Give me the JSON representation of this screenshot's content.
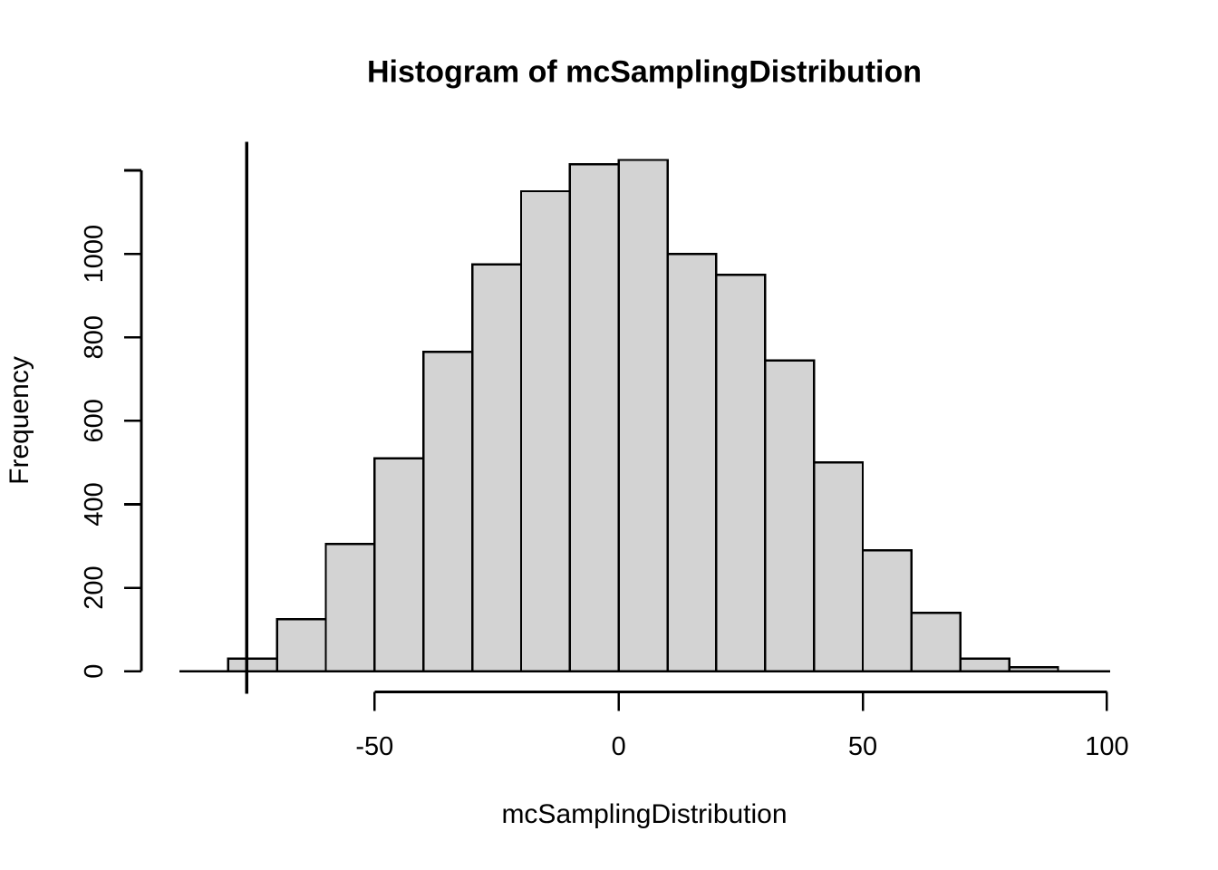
{
  "page": {
    "background": "#ffffff"
  },
  "chart_data": {
    "type": "bar",
    "subtype": "histogram",
    "title": "Histogram of mcSamplingDistribution",
    "xlabel": "mcSamplingDistribution",
    "ylabel": "Frequency",
    "grid": false,
    "legend": false,
    "xlim": [
      -90,
      101
    ],
    "ylim": [
      0,
      1280
    ],
    "x_ticks": [
      {
        "value": -50,
        "label": "-50"
      },
      {
        "value": 0,
        "label": "0"
      },
      {
        "value": 50,
        "label": "50"
      },
      {
        "value": 100,
        "label": "100"
      }
    ],
    "y_ticks": [
      {
        "value": 0,
        "label": "0"
      },
      {
        "value": 200,
        "label": "200"
      },
      {
        "value": 400,
        "label": "400"
      },
      {
        "value": 600,
        "label": "600"
      },
      {
        "value": 800,
        "label": "800"
      },
      {
        "value": 1000,
        "label": "1000"
      },
      {
        "value": 1200,
        "label": ""
      }
    ],
    "bins": [
      {
        "from": -80,
        "to": -70,
        "count": 30
      },
      {
        "from": -70,
        "to": -60,
        "count": 125
      },
      {
        "from": -60,
        "to": -50,
        "count": 305
      },
      {
        "from": -50,
        "to": -40,
        "count": 510
      },
      {
        "from": -40,
        "to": -30,
        "count": 765
      },
      {
        "from": -30,
        "to": -20,
        "count": 975
      },
      {
        "from": -20,
        "to": -10,
        "count": 1150
      },
      {
        "from": -10,
        "to": 0,
        "count": 1215
      },
      {
        "from": 0,
        "to": 10,
        "count": 1225
      },
      {
        "from": 10,
        "to": 20,
        "count": 1000
      },
      {
        "from": 20,
        "to": 30,
        "count": 950
      },
      {
        "from": 30,
        "to": 40,
        "count": 745
      },
      {
        "from": 40,
        "to": 50,
        "count": 500
      },
      {
        "from": 50,
        "to": 60,
        "count": 290
      },
      {
        "from": 60,
        "to": 70,
        "count": 140
      },
      {
        "from": 70,
        "to": 80,
        "count": 30
      },
      {
        "from": 80,
        "to": 90,
        "count": 10
      }
    ],
    "vertical_line_x": -76.2,
    "colors": {
      "bar_fill": "#d3d3d3",
      "bar_border": "#000000",
      "axis": "#000000",
      "vline": "#000000",
      "text": "#000000"
    }
  }
}
